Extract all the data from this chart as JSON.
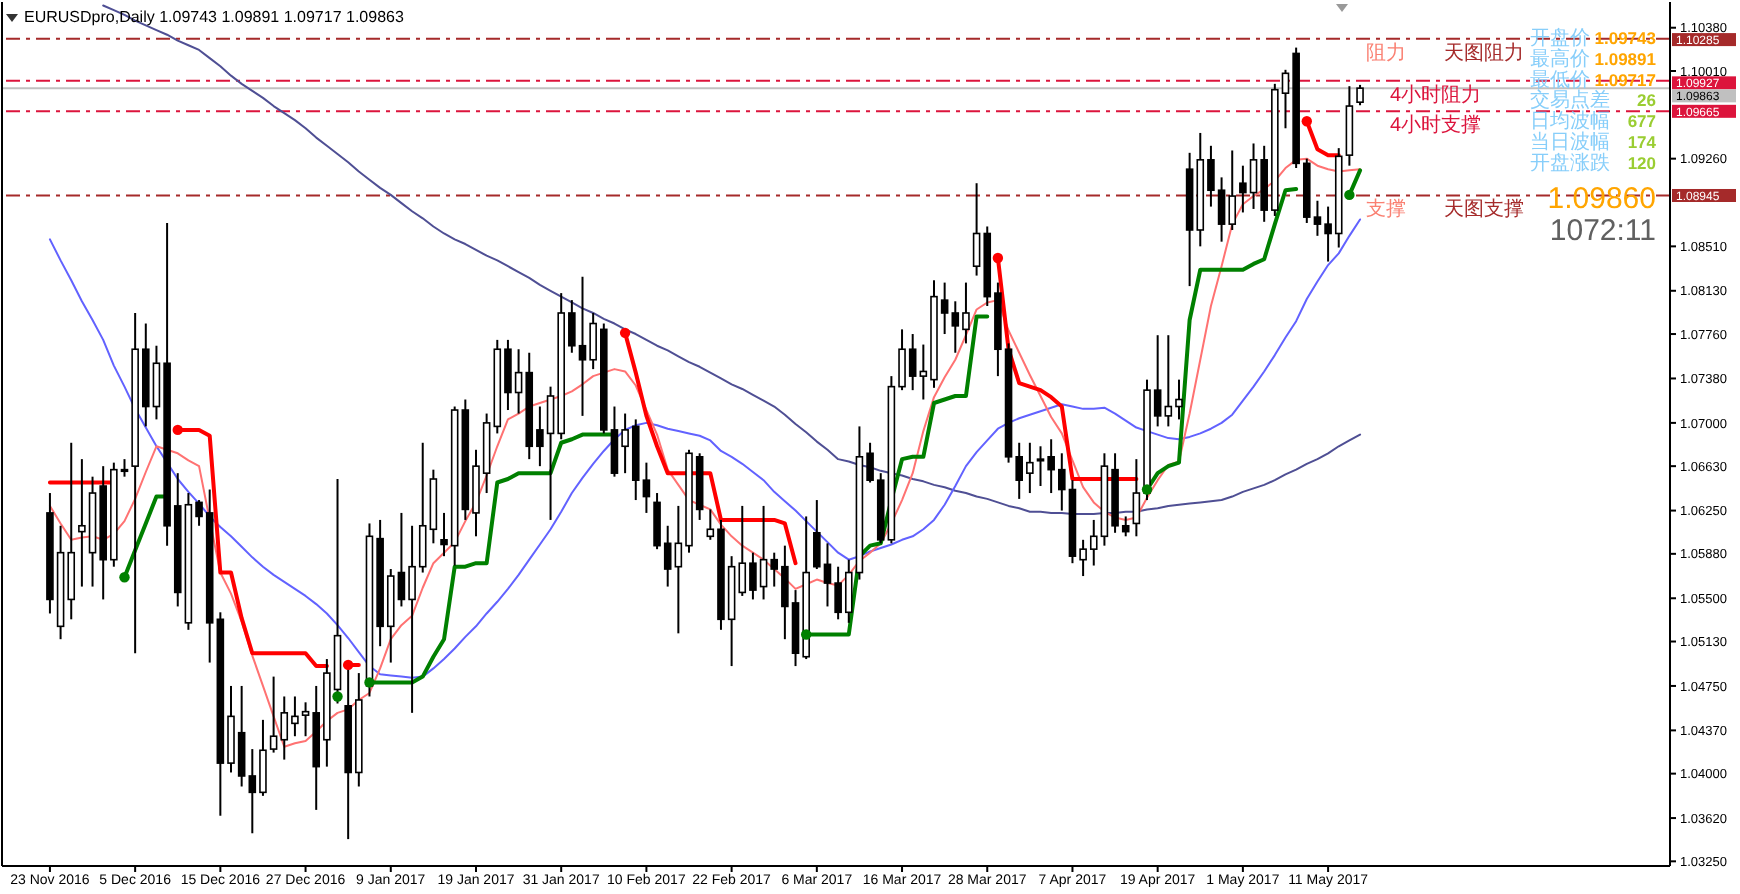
{
  "chart_data": {
    "type": "candlestick",
    "title": "EURUSDpro,Daily 1.09743 1.09891 1.09717 1.09863",
    "color": "#000000",
    "categories": [
      "23 Nov 2016",
      null,
      null,
      null,
      null,
      null,
      null,
      null,
      "5 Dec 2016",
      null,
      null,
      null,
      null,
      null,
      null,
      null,
      "15 Dec 2016",
      null,
      null,
      null,
      null,
      null,
      null,
      null,
      "27 Dec 2016",
      null,
      null,
      null,
      null,
      null,
      null,
      null,
      "9 Jan 2017",
      null,
      null,
      null,
      null,
      null,
      null,
      null,
      "19 Jan 2017",
      null,
      null,
      null,
      null,
      null,
      null,
      null,
      "31 Jan 2017",
      null,
      null,
      null,
      null,
      null,
      null,
      null,
      "10 Feb 2017",
      null,
      null,
      null,
      null,
      null,
      null,
      null,
      "22 Feb 2017",
      null,
      null,
      null,
      null,
      null,
      null,
      null,
      "6 Mar 2017",
      null,
      null,
      null,
      null,
      null,
      null,
      null,
      "16 Mar 2017",
      null,
      null,
      null,
      null,
      null,
      null,
      null,
      "28 Mar 2017",
      null,
      null,
      null,
      null,
      null,
      null,
      null,
      "7 Apr 2017",
      null,
      null,
      null,
      null,
      null,
      null,
      null,
      "19 Apr 2017",
      null,
      null,
      null,
      null,
      null,
      null,
      null,
      "1 May 2017",
      null,
      null,
      null,
      null,
      null,
      null,
      null,
      "11 May 2017",
      null,
      null,
      null
    ],
    "ohlc": [
      [
        1.0623,
        1.064,
        1.0537,
        1.0549
      ],
      [
        1.0526,
        1.0612,
        1.0515,
        1.0589
      ],
      [
        1.0549,
        1.0683,
        1.0532,
        1.0589
      ],
      [
        1.0607,
        1.0669,
        1.056,
        1.0612
      ],
      [
        1.0589,
        1.0654,
        1.056,
        1.064
      ],
      [
        1.0646,
        1.0663,
        1.0549,
        1.0583
      ],
      [
        1.0583,
        1.0666,
        1.0577,
        1.066
      ],
      [
        1.0659,
        1.0669,
        1.0654,
        1.066
      ],
      [
        1.0663,
        1.0794,
        1.0503,
        1.0763
      ],
      [
        1.0763,
        1.0785,
        1.0697,
        1.0714
      ],
      [
        1.0714,
        1.0766,
        1.0703,
        1.0751
      ],
      [
        1.0751,
        1.0871,
        1.0595,
        1.0612
      ],
      [
        1.0629,
        1.0657,
        1.0543,
        1.0555
      ],
      [
        1.0529,
        1.064,
        1.0523,
        1.063
      ],
      [
        1.0632,
        1.0634,
        1.0612,
        1.062
      ],
      [
        1.0623,
        1.0643,
        1.0495,
        1.0529
      ],
      [
        1.0532,
        1.0538,
        1.0364,
        1.0409
      ],
      [
        1.0409,
        1.0475,
        1.0401,
        1.0449
      ],
      [
        1.0435,
        1.0475,
        1.0389,
        1.0398
      ],
      [
        1.0398,
        1.0421,
        1.0349,
        1.0384
      ],
      [
        1.0384,
        1.0446,
        1.0381,
        1.042
      ],
      [
        1.0421,
        1.0483,
        1.0418,
        1.0432
      ],
      [
        1.0429,
        1.0466,
        1.0412,
        1.0452
      ],
      [
        1.0443,
        1.0466,
        1.0432,
        1.0449
      ],
      [
        1.045,
        1.0461,
        1.0432,
        1.0453
      ],
      [
        1.0452,
        1.0475,
        1.0369,
        1.0406
      ],
      [
        1.0429,
        1.0498,
        1.0406,
        1.0486
      ],
      [
        1.0472,
        1.0652,
        1.046,
        1.0518
      ],
      [
        1.0458,
        1.0492,
        1.0344,
        1.0401
      ],
      [
        1.0401,
        1.0486,
        1.0389,
        1.0463
      ],
      [
        1.0475,
        1.0614,
        1.0466,
        1.0603
      ],
      [
        1.0601,
        1.0617,
        1.0509,
        1.0526
      ],
      [
        1.0526,
        1.0575,
        1.0495,
        1.0569
      ],
      [
        1.0572,
        1.0623,
        1.0543,
        1.0549
      ],
      [
        1.0549,
        1.0612,
        1.0452,
        1.0577
      ],
      [
        1.0577,
        1.0683,
        1.0572,
        1.0612
      ],
      [
        1.0609,
        1.066,
        1.0597,
        1.0652
      ],
      [
        1.06,
        1.0623,
        1.0586,
        1.0596
      ],
      [
        1.0595,
        1.0714,
        1.0578,
        1.0711
      ],
      [
        1.0711,
        1.072,
        1.0617,
        1.0626
      ],
      [
        1.0623,
        1.0677,
        1.0603,
        1.0663
      ],
      [
        1.0657,
        1.0708,
        1.064,
        1.07
      ],
      [
        1.0697,
        1.0771,
        1.0691,
        1.0763
      ],
      [
        1.0763,
        1.0771,
        1.0711,
        1.0726
      ],
      [
        1.0726,
        1.0763,
        1.0708,
        1.0743
      ],
      [
        1.0743,
        1.076,
        1.0669,
        1.068
      ],
      [
        1.0694,
        1.0714,
        1.0663,
        1.068
      ],
      [
        1.0691,
        1.0731,
        1.0617,
        1.0723
      ],
      [
        1.0691,
        1.0811,
        1.0686,
        1.0794
      ],
      [
        1.0794,
        1.0805,
        1.076,
        1.0766
      ],
      [
        1.0766,
        1.0825,
        1.0706,
        1.0754
      ],
      [
        1.0754,
        1.0794,
        1.0746,
        1.0785
      ],
      [
        1.078,
        1.0785,
        1.0691,
        1.0694
      ],
      [
        1.0694,
        1.0714,
        1.0654,
        1.0657
      ],
      [
        1.068,
        1.0708,
        1.0657,
        1.0694
      ],
      [
        1.0697,
        1.0703,
        1.0634,
        1.0651
      ],
      [
        1.0651,
        1.0666,
        1.0623,
        1.0637
      ],
      [
        1.0632,
        1.064,
        1.0592,
        1.0595
      ],
      [
        1.0597,
        1.0612,
        1.056,
        1.0575
      ],
      [
        1.0577,
        1.0629,
        1.052,
        1.0597
      ],
      [
        1.0595,
        1.0677,
        1.0589,
        1.0674
      ],
      [
        1.0671,
        1.0674,
        1.0617,
        1.0626
      ],
      [
        1.0603,
        1.0626,
        1.06,
        1.0609
      ],
      [
        1.0609,
        1.0617,
        1.0523,
        1.0532
      ],
      [
        1.0532,
        1.0586,
        1.0492,
        1.0577
      ],
      [
        1.0555,
        1.0629,
        1.0552,
        1.058
      ],
      [
        1.058,
        1.0589,
        1.0549,
        1.0557
      ],
      [
        1.056,
        1.0629,
        1.0549,
        1.0583
      ],
      [
        1.0583,
        1.0589,
        1.056,
        1.0575
      ],
      [
        1.0577,
        1.0595,
        1.0515,
        1.0543
      ],
      [
        1.0546,
        1.0557,
        1.0492,
        1.0503
      ],
      [
        1.05,
        1.062,
        1.0498,
        1.0572
      ],
      [
        1.0606,
        1.0634,
        1.0575,
        1.0577
      ],
      [
        1.0579,
        1.0597,
        1.0543,
        1.0563
      ],
      [
        1.0563,
        1.0577,
        1.0532,
        1.0538
      ],
      [
        1.0538,
        1.0583,
        1.0529,
        1.0572
      ],
      [
        1.0572,
        1.0697,
        1.0566,
        1.0671
      ],
      [
        1.0674,
        1.0683,
        1.0649,
        1.0651
      ],
      [
        1.0651,
        1.0657,
        1.0597,
        1.06
      ],
      [
        1.06,
        1.074,
        1.0597,
        1.0731
      ],
      [
        1.0731,
        1.078,
        1.0728,
        1.0763
      ],
      [
        1.0763,
        1.0776,
        1.0728,
        1.074
      ],
      [
        1.074,
        1.0767,
        1.072,
        1.0744
      ],
      [
        1.0737,
        1.0822,
        1.073,
        1.0808
      ],
      [
        1.0805,
        1.082,
        1.0776,
        1.0794
      ],
      [
        1.0794,
        1.0804,
        1.076,
        1.0783
      ],
      [
        1.078,
        1.082,
        1.0768,
        1.0794
      ],
      [
        1.0834,
        1.0905,
        1.0826,
        1.0862
      ],
      [
        1.0862,
        1.0868,
        1.08,
        1.0808
      ],
      [
        1.0811,
        1.082,
        1.074,
        1.0763
      ],
      [
        1.0763,
        1.0768,
        1.0666,
        1.0671
      ],
      [
        1.0671,
        1.0683,
        1.0635,
        1.0651
      ],
      [
        1.0657,
        1.0683,
        1.064,
        1.0666
      ],
      [
        1.0668,
        1.068,
        1.0646,
        1.0669
      ],
      [
        1.0671,
        1.0686,
        1.064,
        1.066
      ],
      [
        1.066,
        1.0674,
        1.0625,
        1.0643
      ],
      [
        1.0643,
        1.0651,
        1.058,
        1.0586
      ],
      [
        1.0583,
        1.06,
        1.0569,
        1.0592
      ],
      [
        1.0592,
        1.0617,
        1.0578,
        1.0603
      ],
      [
        1.0603,
        1.0674,
        1.0595,
        1.0663
      ],
      [
        1.066,
        1.0674,
        1.0606,
        1.0612
      ],
      [
        1.0612,
        1.062,
        1.0603,
        1.0607
      ],
      [
        1.0614,
        1.0669,
        1.0603,
        1.064
      ],
      [
        1.064,
        1.0737,
        1.0634,
        1.0728
      ],
      [
        1.0728,
        1.0775,
        1.0697,
        1.0706
      ],
      [
        1.0706,
        1.0775,
        1.0697,
        1.0714
      ],
      [
        1.0714,
        1.0737,
        1.0703,
        1.072
      ],
      [
        1.0917,
        1.0931,
        1.0817,
        1.0865
      ],
      [
        1.0865,
        1.0948,
        1.0851,
        1.0925
      ],
      [
        1.0925,
        1.0937,
        1.0885,
        1.0899
      ],
      [
        1.0899,
        1.091,
        1.0855,
        1.087
      ],
      [
        1.087,
        1.0933,
        1.0865,
        1.0894
      ],
      [
        1.0905,
        1.092,
        1.088,
        1.0897
      ],
      [
        1.0897,
        1.0939,
        1.0883,
        1.0925
      ],
      [
        1.0925,
        1.0937,
        1.0872,
        1.0882
      ],
      [
        1.0882,
        1.099,
        1.0877,
        1.0985
      ],
      [
        1.0982,
        1.1002,
        1.0952,
        1.0999
      ],
      [
        1.1016,
        1.1021,
        1.0918,
        1.0922
      ],
      [
        1.0922,
        1.0926,
        1.0871,
        1.0876
      ],
      [
        1.0876,
        1.089,
        1.086,
        1.087
      ],
      [
        1.087,
        1.0885,
        1.0838,
        1.0862
      ],
      [
        1.0862,
        1.0935,
        1.085,
        1.0928
      ],
      [
        1.0929,
        1.0988,
        1.092,
        1.0971
      ],
      [
        1.09743,
        1.09891,
        1.09717,
        1.09863
      ]
    ],
    "series": [
      {
        "type": "line",
        "color": "#4f4f94",
        "values": [
          null,
          null,
          null,
          null,
          null,
          1.1057,
          1.1053,
          1.1049,
          1.1044,
          1.104,
          1.1036,
          1.1032,
          1.1027,
          1.1023,
          1.1019,
          1.1012,
          1.1005,
          1.0997,
          1.099,
          1.0984,
          1.0978,
          1.0971,
          1.0965,
          1.0959,
          1.0952,
          1.0944,
          1.0937,
          1.093,
          1.0923,
          1.0915,
          1.0908,
          1.0901,
          1.0895,
          1.0888,
          1.0881,
          1.0875,
          1.0868,
          1.0862,
          1.0857,
          1.0853,
          1.0848,
          1.0843,
          1.0839,
          1.0834,
          1.0829,
          1.0824,
          1.0818,
          1.0813,
          1.0808,
          1.0803,
          1.0798,
          1.0794,
          1.0789,
          1.0785,
          1.078,
          1.0776,
          1.0771,
          1.0766,
          1.0762,
          1.0757,
          1.0752,
          1.0748,
          1.0743,
          1.0738,
          1.0733,
          1.0729,
          1.0724,
          1.0719,
          1.0714,
          1.0707,
          1.0699,
          1.0692,
          1.0684,
          1.0677,
          1.0669,
          1.0667,
          1.0664,
          1.0662,
          1.0659,
          1.0657,
          1.0655,
          1.0652,
          1.065,
          1.0647,
          1.0645,
          1.0642,
          1.064,
          1.0637,
          1.0635,
          1.0632,
          1.0629,
          1.0627,
          1.0624,
          1.0624,
          1.0623,
          1.0623,
          1.0622,
          1.0622,
          1.0622,
          1.0623,
          1.0623,
          1.0624,
          1.0624,
          1.0626,
          1.0627,
          1.0629,
          1.063,
          1.0631,
          1.0632,
          1.0633,
          1.0634,
          1.0637,
          1.0641,
          1.0644,
          1.0647,
          1.0651,
          1.0656,
          1.066,
          1.0665,
          1.0669,
          1.0674,
          1.068,
          1.0685,
          1.069
        ]
      },
      {
        "type": "line",
        "color": "#6262ff",
        "values": [
          1.0857,
          1.0839,
          1.0822,
          1.0804,
          1.0788,
          1.0771,
          1.0749,
          1.0731,
          1.0712,
          1.0696,
          1.068,
          1.0666,
          1.0652,
          1.0641,
          1.0631,
          1.062,
          1.0611,
          1.0603,
          1.0594,
          1.0585,
          1.0577,
          1.057,
          1.0564,
          1.0558,
          1.0552,
          1.0545,
          1.0537,
          1.0527,
          1.0516,
          1.0504,
          1.0492,
          1.0485,
          1.0484,
          1.0483,
          1.0482,
          1.0483,
          1.049,
          1.0498,
          1.0507,
          1.0517,
          1.0526,
          1.0537,
          1.0547,
          1.0558,
          1.057,
          1.0583,
          1.0596,
          1.0609,
          1.0624,
          1.064,
          1.0653,
          1.0665,
          1.0676,
          1.0686,
          1.0694,
          1.0698,
          1.07,
          1.0698,
          1.0695,
          1.0693,
          1.0691,
          1.0689,
          1.0685,
          1.0676,
          1.0671,
          1.0665,
          1.0658,
          1.0651,
          1.0641,
          1.0633,
          1.0625,
          1.0616,
          1.0607,
          1.0598,
          1.0589,
          1.0583,
          1.0586,
          1.059,
          1.0593,
          1.0596,
          1.06,
          1.0603,
          1.0609,
          1.0617,
          1.063,
          1.0646,
          1.0663,
          1.0675,
          1.0685,
          1.0695,
          1.07,
          1.0704,
          1.0707,
          1.071,
          1.0713,
          1.0716,
          1.0714,
          1.0712,
          1.0712,
          1.0713,
          1.0708,
          1.0702,
          1.0696,
          1.0693,
          1.069,
          1.0687,
          1.0686,
          1.0688,
          1.0691,
          1.0695,
          1.07,
          1.0707,
          1.0719,
          1.0731,
          1.0744,
          1.0758,
          1.0773,
          1.0787,
          1.0806,
          1.0821,
          1.0835,
          1.0845,
          1.086,
          1.0874
        ]
      },
      {
        "type": "line",
        "color": "#ff7272",
        "values": [
          1.0629,
          1.0614,
          1.06,
          1.0602,
          1.0603,
          1.06,
          1.0605,
          1.0616,
          1.0635,
          1.0658,
          1.068,
          1.0677,
          1.0674,
          1.0668,
          1.0663,
          1.0617,
          1.0572,
          1.0554,
          1.053,
          1.0501,
          1.0475,
          1.0449,
          1.0423,
          1.0426,
          1.0428,
          1.0436,
          1.0445,
          1.0452,
          1.0455,
          1.0463,
          1.0469,
          1.049,
          1.0515,
          1.0527,
          1.0535,
          1.0559,
          1.058,
          1.0589,
          1.0598,
          1.0616,
          1.0632,
          1.0655,
          1.068,
          1.0703,
          1.0708,
          1.0714,
          1.0717,
          1.072,
          1.0723,
          1.0727,
          1.0733,
          1.074,
          1.0743,
          1.0746,
          1.0744,
          1.0732,
          1.0711,
          1.069,
          1.066,
          1.0647,
          1.0634,
          1.063,
          1.0626,
          1.0613,
          1.0603,
          1.0595,
          1.0589,
          1.0583,
          1.0575,
          1.0567,
          1.0558,
          1.0562,
          1.0566,
          1.0563,
          1.0561,
          1.057,
          1.0582,
          1.0589,
          1.0597,
          1.0614,
          1.0634,
          1.0657,
          1.0693,
          1.0722,
          1.0739,
          1.0754,
          1.0775,
          1.0797,
          1.0803,
          1.0805,
          1.0779,
          1.076,
          1.0741,
          1.0723,
          1.0705,
          1.0691,
          1.0668,
          1.0645,
          1.0632,
          1.0624,
          1.0619,
          1.0617,
          1.0619,
          1.0636,
          1.0651,
          1.0664,
          1.0667,
          1.0708,
          1.0754,
          1.08,
          1.0834,
          1.087,
          1.0887,
          1.0894,
          1.09,
          1.0907,
          1.0918,
          1.0925,
          1.0926,
          1.092,
          1.0917,
          1.0915,
          1.0916,
          1.0917
        ]
      },
      {
        "type": "line",
        "color": "#ff0000",
        "values": [
          1.0649,
          1.0649,
          1.0649,
          1.0649,
          1.0649,
          1.0649,
          1.0649,
          null,
          null,
          null,
          null,
          null,
          1.0694,
          1.0694,
          1.0694,
          1.0689,
          1.0572,
          1.0572,
          1.0533,
          1.0503,
          1.0503,
          1.0503,
          1.0503,
          1.0503,
          1.0503,
          1.0492,
          1.0492,
          null,
          1.0493,
          1.0493,
          null,
          null,
          null,
          null,
          null,
          null,
          null,
          null,
          null,
          null,
          null,
          null,
          null,
          null,
          null,
          null,
          null,
          null,
          null,
          null,
          null,
          null,
          null,
          null,
          1.0777,
          1.0743,
          1.0706,
          1.068,
          1.0657,
          1.0657,
          1.0657,
          1.0657,
          1.0657,
          1.0617,
          1.0617,
          1.0617,
          1.0617,
          1.0617,
          1.0617,
          1.0614,
          1.058,
          null,
          null,
          null,
          null,
          null,
          null,
          null,
          null,
          null,
          null,
          null,
          null,
          null,
          null,
          null,
          null,
          null,
          null,
          1.0841,
          1.0763,
          1.0734,
          1.0731,
          1.0728,
          1.0722,
          1.0714,
          1.0652,
          1.0652,
          1.0652,
          1.0652,
          1.0652,
          1.0652,
          1.0652,
          null,
          null,
          null,
          null,
          null,
          null,
          null,
          null,
          null,
          null,
          null,
          null,
          null,
          null,
          null,
          1.0958,
          1.0934,
          1.0929,
          1.0929,
          null,
          null
        ]
      },
      {
        "type": "line",
        "color": "#008000",
        "values": [
          null,
          null,
          null,
          null,
          null,
          null,
          null,
          1.0568,
          1.0591,
          1.0614,
          1.0637,
          1.0637,
          null,
          null,
          null,
          null,
          null,
          null,
          null,
          null,
          null,
          null,
          null,
          null,
          null,
          null,
          null,
          null,
          null,
          null,
          1.0478,
          1.0478,
          1.0478,
          1.0478,
          1.0478,
          1.0483,
          1.05,
          1.0515,
          1.0577,
          1.0577,
          1.058,
          1.058,
          1.0649,
          1.0652,
          1.0657,
          1.0657,
          1.0657,
          1.0657,
          1.0683,
          1.0686,
          1.069,
          1.069,
          1.069,
          1.069,
          null,
          null,
          null,
          null,
          null,
          null,
          null,
          null,
          null,
          null,
          null,
          null,
          null,
          null,
          null,
          null,
          null,
          1.0519,
          1.0519,
          1.0519,
          1.0519,
          1.0519,
          1.0586,
          1.0595,
          1.0597,
          1.0634,
          1.0669,
          1.0671,
          1.0671,
          1.0717,
          1.072,
          1.0723,
          1.0723,
          1.0791,
          1.0791,
          null,
          null,
          null,
          null,
          null,
          null,
          null,
          null,
          null,
          null,
          null,
          null,
          null,
          null,
          1.0643,
          1.0657,
          1.0663,
          1.0666,
          1.0788,
          1.0831,
          1.0831,
          1.0831,
          1.0831,
          1.0831,
          1.0836,
          1.084,
          1.087,
          1.0899,
          1.09,
          null,
          null,
          null,
          null,
          1.0895,
          1.0916
        ]
      },
      {
        "type": "scatter",
        "marker": "circle",
        "color": "#ff0000",
        "values": [
          null,
          null,
          null,
          null,
          null,
          null,
          null,
          null,
          null,
          null,
          null,
          null,
          1.0694,
          null,
          null,
          null,
          null,
          null,
          null,
          null,
          null,
          null,
          null,
          null,
          null,
          null,
          null,
          null,
          1.0493,
          null,
          null,
          null,
          null,
          null,
          null,
          null,
          null,
          null,
          null,
          null,
          null,
          null,
          null,
          null,
          null,
          null,
          null,
          null,
          null,
          null,
          null,
          null,
          null,
          null,
          1.0777,
          null,
          null,
          null,
          null,
          null,
          null,
          null,
          null,
          null,
          null,
          null,
          null,
          null,
          null,
          null,
          null,
          null,
          null,
          null,
          null,
          null,
          null,
          null,
          null,
          null,
          null,
          null,
          null,
          null,
          null,
          null,
          null,
          null,
          null,
          1.0841,
          null,
          null,
          null,
          null,
          null,
          null,
          null,
          null,
          null,
          null,
          null,
          null,
          null,
          null,
          null,
          null,
          null,
          null,
          null,
          null,
          null,
          null,
          null,
          null,
          null,
          null,
          null,
          null,
          1.0958,
          null,
          null,
          null,
          null,
          null
        ]
      },
      {
        "type": "scatter",
        "marker": "circle",
        "color": "#008000",
        "values": [
          null,
          null,
          null,
          null,
          null,
          null,
          null,
          1.0568,
          null,
          null,
          null,
          null,
          null,
          null,
          null,
          null,
          null,
          null,
          null,
          null,
          null,
          null,
          null,
          null,
          null,
          null,
          null,
          1.0466,
          null,
          null,
          1.0478,
          null,
          null,
          null,
          null,
          null,
          null,
          null,
          null,
          null,
          null,
          null,
          null,
          null,
          null,
          null,
          null,
          null,
          null,
          null,
          null,
          null,
          null,
          null,
          null,
          null,
          null,
          null,
          null,
          null,
          null,
          null,
          null,
          null,
          null,
          null,
          null,
          null,
          null,
          null,
          null,
          1.0519,
          null,
          null,
          null,
          null,
          null,
          null,
          null,
          null,
          null,
          null,
          null,
          null,
          null,
          null,
          null,
          null,
          null,
          null,
          null,
          null,
          null,
          null,
          null,
          null,
          null,
          null,
          null,
          null,
          null,
          null,
          null,
          1.0643,
          null,
          null,
          null,
          null,
          null,
          null,
          null,
          null,
          null,
          null,
          null,
          null,
          null,
          null,
          null,
          null,
          null,
          null,
          1.0895,
          null
        ]
      }
    ],
    "ylim": [
      1.0321,
      1.106
    ],
    "yticks": [
      {
        "value": 1.1038,
        "label": "1.10380"
      },
      {
        "value": 1.1001,
        "label": "1.10010"
      },
      {
        "value": 1.0926,
        "label": "1.09260"
      },
      {
        "value": 1.0851,
        "label": "1.08510"
      },
      {
        "value": 1.0813,
        "label": "1.08130"
      },
      {
        "value": 1.0776,
        "label": "1.07760"
      },
      {
        "value": 1.0738,
        "label": "1.07380"
      },
      {
        "value": 1.07,
        "label": "1.07000"
      },
      {
        "value": 1.0663,
        "label": "1.06630"
      },
      {
        "value": 1.0625,
        "label": "1.06250"
      },
      {
        "value": 1.0588,
        "label": "1.05880"
      },
      {
        "value": 1.055,
        "label": "1.05500"
      },
      {
        "value": 1.0513,
        "label": "1.05130"
      },
      {
        "value": 1.0475,
        "label": "1.04750"
      },
      {
        "value": 1.0437,
        "label": "1.04370"
      },
      {
        "value": 1.04,
        "label": "1.04000"
      },
      {
        "value": 1.0362,
        "label": "1.03620"
      },
      {
        "value": 1.0325,
        "label": "1.03250"
      }
    ],
    "ref_lines": [
      {
        "axis": "y",
        "value": 1.10285,
        "label": "1.10285",
        "color": "#a52a2a",
        "line_style": "dashdot"
      },
      {
        "axis": "y",
        "value": 1.09927,
        "label": "1.09927",
        "color": "#dc143c",
        "line_style": "dashdot"
      },
      {
        "axis": "y",
        "value": 1.09863,
        "label": "1.09863",
        "color": "#c0c0c0",
        "line_style": "solid"
      },
      {
        "axis": "y",
        "value": 1.09665,
        "label": "1.09665",
        "color": "#dc143c",
        "line_style": "dashdot"
      },
      {
        "axis": "y",
        "value": 1.08945,
        "label": "1.08945",
        "color": "#a52a2a",
        "line_style": "dashdot"
      }
    ],
    "annotations": [
      "开盘价 1.09743",
      "最高价 1.09891",
      "最低价 1.09717",
      "交易点差 26",
      "日均波幅 677",
      "当日波幅 174",
      "开盘涨跌 120",
      "1.09860",
      "1072:11",
      {
        "text": "阻力",
        "y": 1.10285
      },
      {
        "text": "天图阻力",
        "y": 1.10285
      },
      {
        "text": "4小时阻力",
        "y": 1.09927
      },
      {
        "text": "4小时支撑",
        "y": 1.09665
      },
      {
        "text": "支撑",
        "y": 1.08945
      },
      {
        "text": "天图支撑",
        "y": 1.08945
      }
    ]
  }
}
